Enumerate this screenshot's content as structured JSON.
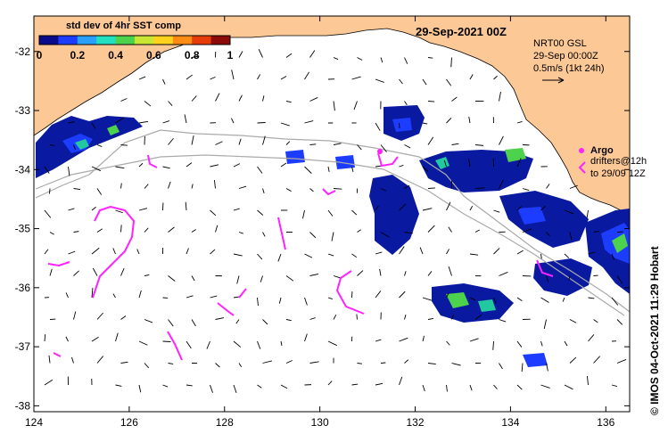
{
  "title": "29-Sep-2021 00Z",
  "colorbar": {
    "title": "std dev of 4hr SST comp",
    "ticks": [
      "0",
      "0.2",
      "0.4",
      "0.6",
      "0.8",
      "1"
    ],
    "colors": [
      "#0a0a8c",
      "#1c3cff",
      "#2aa0ff",
      "#22e0c0",
      "#4cd24c",
      "#c8e632",
      "#ffd21e",
      "#ff8c14",
      "#e63c0a",
      "#8c0a0a"
    ]
  },
  "current_legend": {
    "line1": "NRT00 GSL",
    "line2": "29-Sep 00:00Z",
    "line3": "0.5m/s (1kt 24h)"
  },
  "float_legend": {
    "argo_label": "Argo",
    "drifters_line1": "drifters@12h",
    "drifters_line2": "to 29/09 12Z"
  },
  "credit": "© IMOS 04-Oct-2021 11:29 Hobart",
  "axes": {
    "lon_range": [
      124,
      136.5
    ],
    "lat_range": [
      -38.1,
      -31.4
    ],
    "x_ticks": [
      "124",
      "126",
      "128",
      "130",
      "132",
      "134",
      "136"
    ],
    "y_ticks": [
      "-32",
      "-33",
      "-34",
      "-35",
      "-36",
      "-37",
      "-38"
    ]
  },
  "colors": {
    "land": "#fcc896",
    "track": "#aaaaaa",
    "drifter": "#ff22ff",
    "argo": "#ff22ff",
    "arrow": "#000000"
  }
}
